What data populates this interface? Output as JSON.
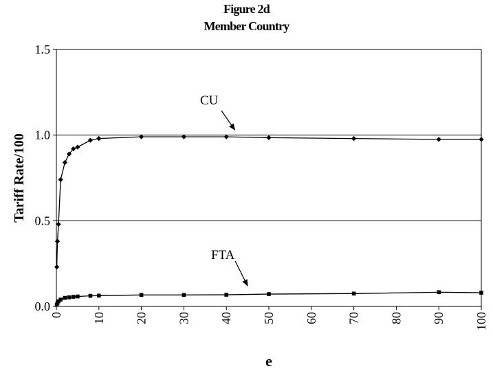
{
  "chart_data": {
    "type": "line",
    "title": "Figure 2d",
    "subtitle": "Member Country",
    "xlabel": "e",
    "ylabel": "Tariff Rate/100",
    "xlim": [
      0,
      100
    ],
    "ylim": [
      0.0,
      1.5
    ],
    "x_ticks": [
      "0",
      "10",
      "20",
      "30",
      "40",
      "50",
      "60",
      "70",
      "80",
      "90",
      "100"
    ],
    "y_ticks": [
      "0.0",
      "0.5",
      "1.0",
      "1.5"
    ],
    "grid": "horizontal",
    "series": [
      {
        "name": "CU",
        "marker": "diamond",
        "color": "#000000",
        "x": [
          0.1,
          0.25,
          0.5,
          1,
          2,
          3,
          4,
          5,
          8,
          10,
          20,
          30,
          40,
          50,
          70,
          90,
          100
        ],
        "y": [
          0.23,
          0.38,
          0.48,
          0.74,
          0.84,
          0.89,
          0.92,
          0.93,
          0.97,
          0.98,
          0.99,
          0.99,
          0.99,
          0.985,
          0.98,
          0.975,
          0.975
        ]
      },
      {
        "name": "FTA",
        "marker": "square",
        "color": "#000000",
        "x": [
          0.1,
          0.25,
          0.5,
          1,
          2,
          3,
          4,
          5,
          8,
          10,
          20,
          30,
          40,
          50,
          70,
          90,
          100
        ],
        "y": [
          0.01,
          0.02,
          0.03,
          0.04,
          0.05,
          0.053,
          0.056,
          0.058,
          0.062,
          0.063,
          0.067,
          0.067,
          0.068,
          0.072,
          0.075,
          0.083,
          0.08
        ]
      }
    ],
    "annotations": [
      {
        "text": "CU",
        "points_to": {
          "x": 42,
          "y": 1.03
        }
      },
      {
        "text": "FTA",
        "points_to": {
          "x": 45,
          "y": 0.12
        }
      }
    ]
  }
}
